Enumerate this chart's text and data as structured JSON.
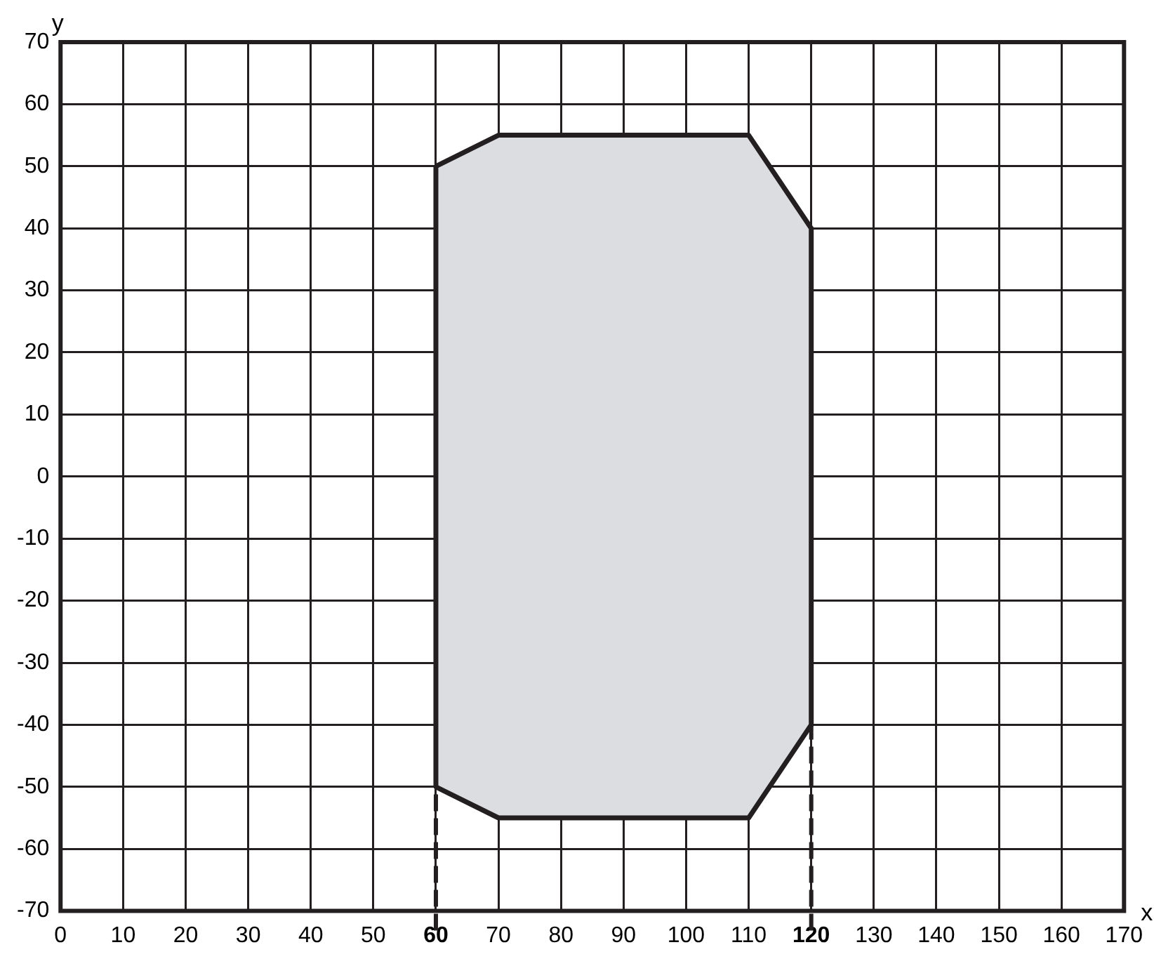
{
  "chart_data": {
    "type": "area",
    "xlabel": "x",
    "ylabel": "y",
    "x": [
      60,
      70,
      110,
      120,
      120,
      110,
      70,
      60,
      60
    ],
    "series": [
      {
        "color": "#dcdde0",
        "values": [
          50,
          55,
          55,
          40,
          -40,
          -55,
          -55,
          -50,
          50
        ]
      }
    ],
    "xlim": [
      0,
      170
    ],
    "ylim": [
      -70,
      70
    ],
    "xticks": [
      0,
      10,
      20,
      30,
      40,
      50,
      60,
      70,
      80,
      90,
      100,
      110,
      120,
      130,
      140,
      150,
      160,
      170
    ],
    "yticks": [
      -70,
      -60,
      -50,
      -40,
      -30,
      -20,
      -10,
      0,
      10,
      20,
      30,
      40,
      50,
      60,
      70
    ],
    "grid": true,
    "legend": false,
    "ref_lines": [
      {
        "axis": "x",
        "value": 60,
        "line_style": "dashed",
        "color": "#231f20"
      },
      {
        "axis": "x",
        "value": 120,
        "line_style": "dashed",
        "color": "#231f20"
      }
    ]
  }
}
